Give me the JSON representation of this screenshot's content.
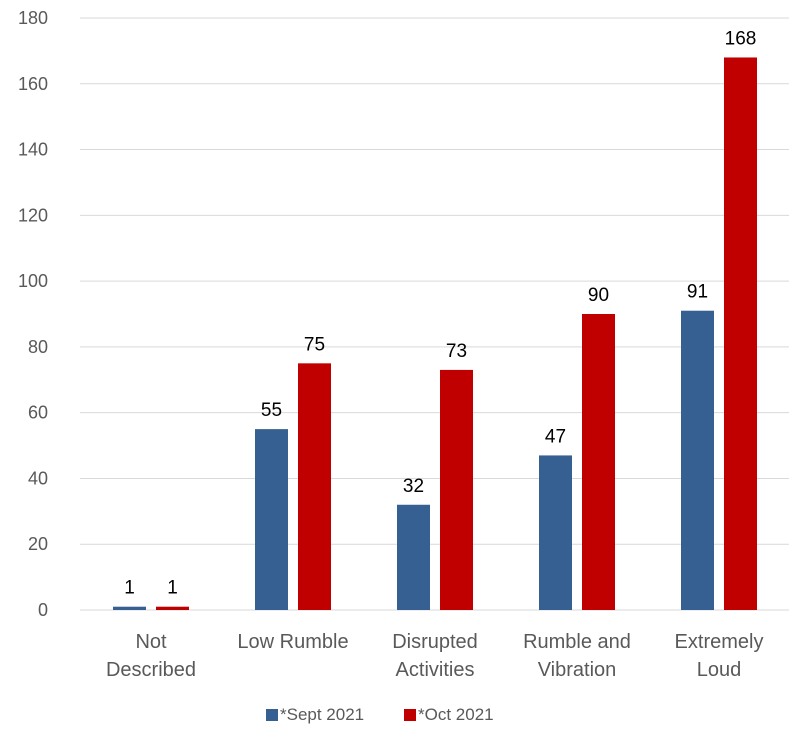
{
  "chart_data": {
    "type": "bar",
    "categories": [
      [
        "Not",
        "Described"
      ],
      [
        "Low Rumble"
      ],
      [
        "Disrupted",
        "Activities"
      ],
      [
        "Rumble and",
        "Vibration"
      ],
      [
        "Extremely",
        "Loud"
      ]
    ],
    "series": [
      {
        "name": "*Sept 2021",
        "color": "#376092",
        "values": [
          1,
          55,
          32,
          47,
          91
        ]
      },
      {
        "name": "*Oct 2021",
        "color": "#C00000",
        "values": [
          1,
          75,
          73,
          90,
          168
        ]
      }
    ],
    "title": "",
    "xlabel": "",
    "ylabel": "",
    "ylim": [
      0,
      180
    ],
    "yticks": [
      0,
      20,
      40,
      60,
      80,
      100,
      120,
      140,
      160,
      180
    ],
    "grid": true,
    "data_labels": true,
    "legend": "bottom-center"
  }
}
